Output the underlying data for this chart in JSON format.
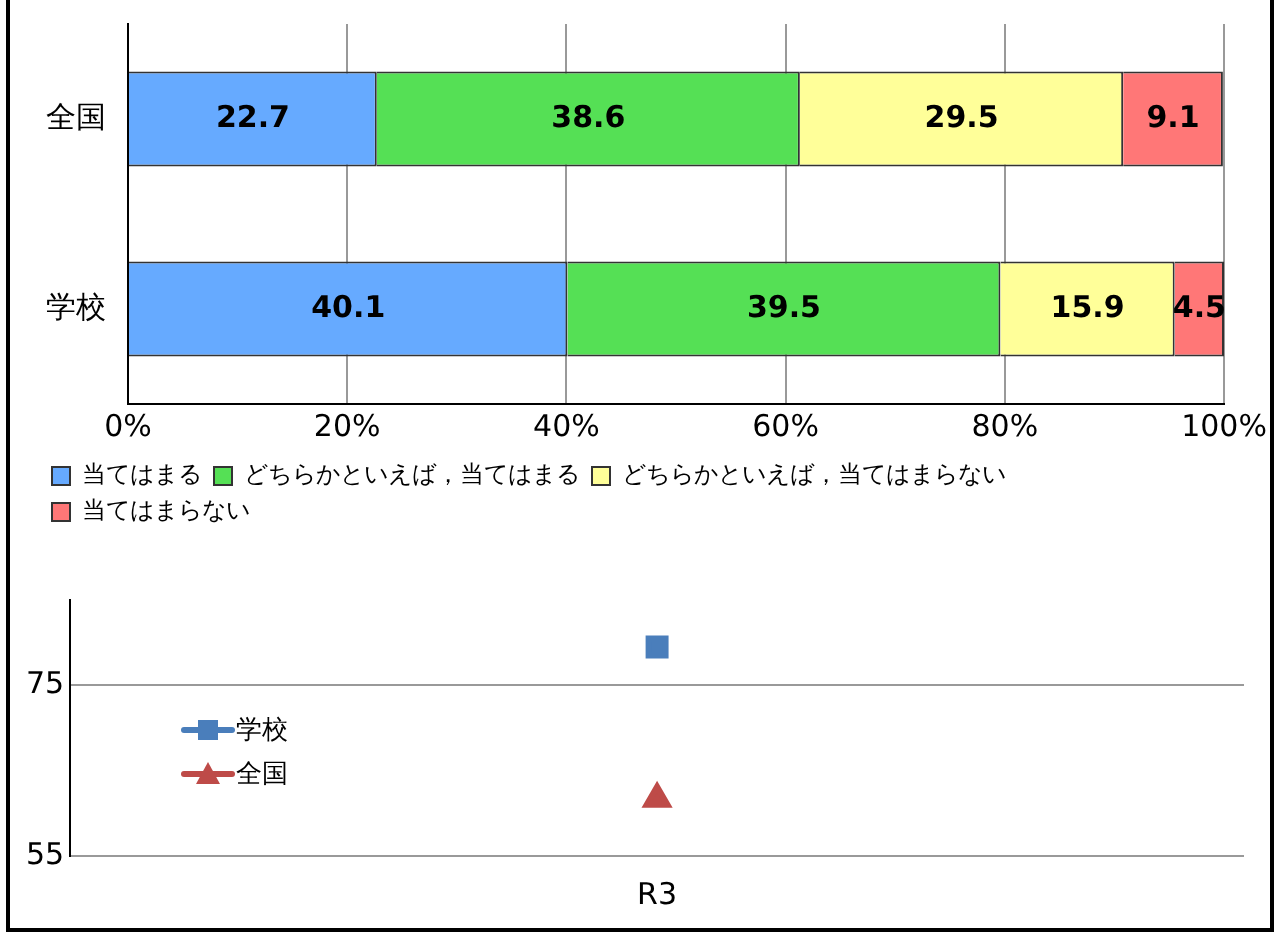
{
  "chart_data": [
    {
      "type": "bar",
      "orientation": "horizontal",
      "stacked": true,
      "categories": [
        "全国",
        "学校"
      ],
      "series": [
        {
          "name": "当てはまる",
          "color": "#66aaff",
          "values": [
            22.7,
            40.1
          ]
        },
        {
          "name": "どちらかといえば，当てはまる",
          "color": "#55e055",
          "values": [
            38.6,
            39.5
          ]
        },
        {
          "name": "どちらかといえば，当てはまらない",
          "color": "#ffff99",
          "values": [
            29.5,
            15.9
          ]
        },
        {
          "name": "当てはまらない",
          "color": "#ff7777",
          "values": [
            9.1,
            4.5
          ]
        }
      ],
      "xlim": [
        0,
        100
      ],
      "xticks": [
        {
          "value": 0,
          "label": "0%"
        },
        {
          "value": 20,
          "label": "20%"
        },
        {
          "value": 40,
          "label": "40%"
        },
        {
          "value": 60,
          "label": "60%"
        },
        {
          "value": 80,
          "label": "80%"
        },
        {
          "value": 100,
          "label": "100%"
        }
      ],
      "grid": "x",
      "legend": "bottom",
      "data_labels": true
    },
    {
      "type": "line",
      "categories": [
        "R3"
      ],
      "series": [
        {
          "name": "学校",
          "color": "#4a7ebb",
          "values": [
            79.5
          ],
          "marker": "square"
        },
        {
          "name": "全国",
          "color": "#be4b48",
          "values": [
            61.7
          ],
          "marker": "triangle"
        }
      ],
      "ylim": [
        55,
        85
      ],
      "yticks": [
        55,
        75
      ],
      "grid": "y",
      "legend": "left"
    }
  ]
}
